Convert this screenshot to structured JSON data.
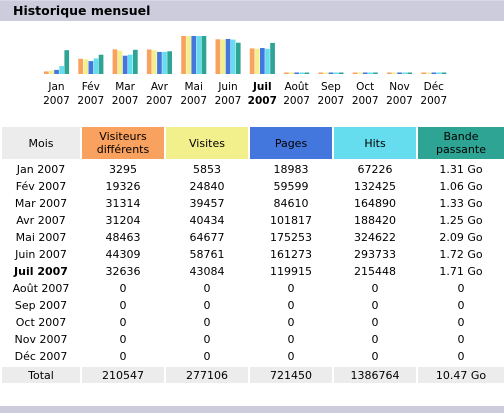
{
  "section_title": "Historique mensuel",
  "colors": {
    "visitors": "#f9a15e",
    "visits": "#f2ef8d",
    "pages": "#4477dd",
    "hits": "#66ddee",
    "bandwidth": "#2ea495"
  },
  "headers": {
    "month": "Mois",
    "visitors": "Visiteurs différents",
    "visits": "Visites",
    "pages": "Pages",
    "hits": "Hits",
    "bandwidth": "Bande passante"
  },
  "chart_data": {
    "type": "bar",
    "categories": [
      [
        "Jan",
        "2007"
      ],
      [
        "Fév",
        "2007"
      ],
      [
        "Mar",
        "2007"
      ],
      [
        "Avr",
        "2007"
      ],
      [
        "Mai",
        "2007"
      ],
      [
        "Juin",
        "2007"
      ],
      [
        "Juil",
        "2007"
      ],
      [
        "Août",
        "2007"
      ],
      [
        "Sep",
        "2007"
      ],
      [
        "Oct",
        "2007"
      ],
      [
        "Nov",
        "2007"
      ],
      [
        "Déc",
        "2007"
      ]
    ],
    "current_index": 6,
    "series": [
      {
        "key": "visitors",
        "values": [
          3295,
          19326,
          31314,
          31204,
          48463,
          44309,
          32636,
          0,
          0,
          0,
          0,
          0
        ]
      },
      {
        "key": "visits",
        "values": [
          5853,
          24840,
          39457,
          40434,
          64677,
          58761,
          43084,
          0,
          0,
          0,
          0,
          0
        ]
      },
      {
        "key": "pages",
        "values": [
          18983,
          59599,
          84610,
          101817,
          175253,
          161273,
          119915,
          0,
          0,
          0,
          0,
          0
        ]
      },
      {
        "key": "hits",
        "values": [
          67226,
          132425,
          164890,
          188420,
          324622,
          293733,
          215448,
          0,
          0,
          0,
          0,
          0
        ]
      },
      {
        "key": "bandwidth",
        "values": [
          1.31,
          1.06,
          1.33,
          1.25,
          2.09,
          1.72,
          1.71,
          0,
          0,
          0,
          0,
          0
        ]
      }
    ]
  },
  "rows": [
    {
      "month": "Jan 2007",
      "visitors": "3295",
      "visits": "5853",
      "pages": "18983",
      "hits": "67226",
      "bandwidth": "1.31 Go"
    },
    {
      "month": "Fév 2007",
      "visitors": "19326",
      "visits": "24840",
      "pages": "59599",
      "hits": "132425",
      "bandwidth": "1.06 Go"
    },
    {
      "month": "Mar 2007",
      "visitors": "31314",
      "visits": "39457",
      "pages": "84610",
      "hits": "164890",
      "bandwidth": "1.33 Go"
    },
    {
      "month": "Avr 2007",
      "visitors": "31204",
      "visits": "40434",
      "pages": "101817",
      "hits": "188420",
      "bandwidth": "1.25 Go"
    },
    {
      "month": "Mai 2007",
      "visitors": "48463",
      "visits": "64677",
      "pages": "175253",
      "hits": "324622",
      "bandwidth": "2.09 Go"
    },
    {
      "month": "Juin 2007",
      "visitors": "44309",
      "visits": "58761",
      "pages": "161273",
      "hits": "293733",
      "bandwidth": "1.72 Go"
    },
    {
      "month": "Juil 2007",
      "visitors": "32636",
      "visits": "43084",
      "pages": "119915",
      "hits": "215448",
      "bandwidth": "1.71 Go"
    },
    {
      "month": "Août 2007",
      "visitors": "0",
      "visits": "0",
      "pages": "0",
      "hits": "0",
      "bandwidth": "0"
    },
    {
      "month": "Sep 2007",
      "visitors": "0",
      "visits": "0",
      "pages": "0",
      "hits": "0",
      "bandwidth": "0"
    },
    {
      "month": "Oct 2007",
      "visitors": "0",
      "visits": "0",
      "pages": "0",
      "hits": "0",
      "bandwidth": "0"
    },
    {
      "month": "Nov 2007",
      "visitors": "0",
      "visits": "0",
      "pages": "0",
      "hits": "0",
      "bandwidth": "0"
    },
    {
      "month": "Déc 2007",
      "visitors": "0",
      "visits": "0",
      "pages": "0",
      "hits": "0",
      "bandwidth": "0"
    }
  ],
  "total": {
    "label": "Total",
    "visitors": "210547",
    "visits": "277106",
    "pages": "721450",
    "hits": "1386764",
    "bandwidth": "10.47 Go"
  }
}
